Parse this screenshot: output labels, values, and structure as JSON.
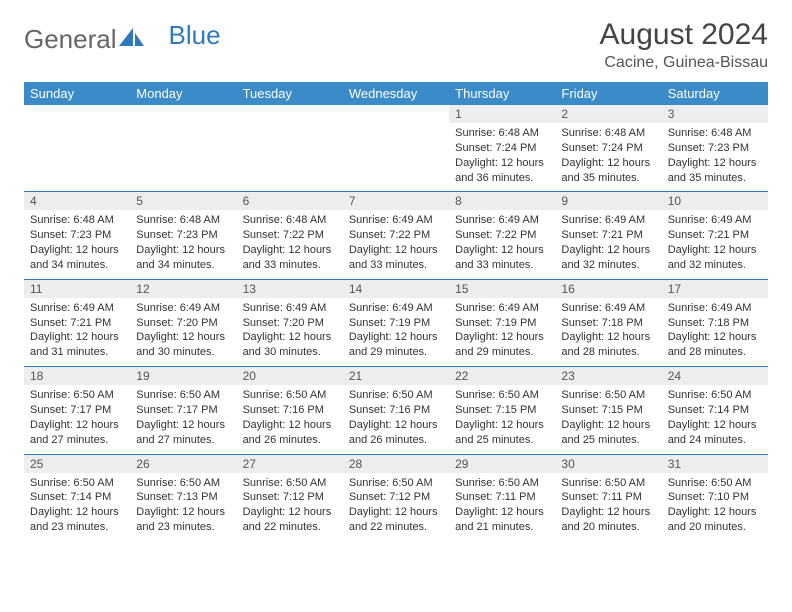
{
  "logo": {
    "general": "General",
    "blue": "Blue"
  },
  "title": "August 2024",
  "subtitle": "Cacine, Guinea-Bissau",
  "dow": [
    "Sunday",
    "Monday",
    "Tuesday",
    "Wednesday",
    "Thursday",
    "Friday",
    "Saturday"
  ],
  "colors": {
    "header_bg": "#3b8bc8",
    "accent": "#2f7abf",
    "daynum_bg": "#ededed",
    "text": "#333333"
  },
  "weeks": [
    [
      null,
      null,
      null,
      null,
      {
        "n": "1",
        "sr": "6:48 AM",
        "ss": "7:24 PM",
        "dl": "12 hours and 36 minutes."
      },
      {
        "n": "2",
        "sr": "6:48 AM",
        "ss": "7:24 PM",
        "dl": "12 hours and 35 minutes."
      },
      {
        "n": "3",
        "sr": "6:48 AM",
        "ss": "7:23 PM",
        "dl": "12 hours and 35 minutes."
      }
    ],
    [
      {
        "n": "4",
        "sr": "6:48 AM",
        "ss": "7:23 PM",
        "dl": "12 hours and 34 minutes."
      },
      {
        "n": "5",
        "sr": "6:48 AM",
        "ss": "7:23 PM",
        "dl": "12 hours and 34 minutes."
      },
      {
        "n": "6",
        "sr": "6:48 AM",
        "ss": "7:22 PM",
        "dl": "12 hours and 33 minutes."
      },
      {
        "n": "7",
        "sr": "6:49 AM",
        "ss": "7:22 PM",
        "dl": "12 hours and 33 minutes."
      },
      {
        "n": "8",
        "sr": "6:49 AM",
        "ss": "7:22 PM",
        "dl": "12 hours and 33 minutes."
      },
      {
        "n": "9",
        "sr": "6:49 AM",
        "ss": "7:21 PM",
        "dl": "12 hours and 32 minutes."
      },
      {
        "n": "10",
        "sr": "6:49 AM",
        "ss": "7:21 PM",
        "dl": "12 hours and 32 minutes."
      }
    ],
    [
      {
        "n": "11",
        "sr": "6:49 AM",
        "ss": "7:21 PM",
        "dl": "12 hours and 31 minutes."
      },
      {
        "n": "12",
        "sr": "6:49 AM",
        "ss": "7:20 PM",
        "dl": "12 hours and 30 minutes."
      },
      {
        "n": "13",
        "sr": "6:49 AM",
        "ss": "7:20 PM",
        "dl": "12 hours and 30 minutes."
      },
      {
        "n": "14",
        "sr": "6:49 AM",
        "ss": "7:19 PM",
        "dl": "12 hours and 29 minutes."
      },
      {
        "n": "15",
        "sr": "6:49 AM",
        "ss": "7:19 PM",
        "dl": "12 hours and 29 minutes."
      },
      {
        "n": "16",
        "sr": "6:49 AM",
        "ss": "7:18 PM",
        "dl": "12 hours and 28 minutes."
      },
      {
        "n": "17",
        "sr": "6:49 AM",
        "ss": "7:18 PM",
        "dl": "12 hours and 28 minutes."
      }
    ],
    [
      {
        "n": "18",
        "sr": "6:50 AM",
        "ss": "7:17 PM",
        "dl": "12 hours and 27 minutes."
      },
      {
        "n": "19",
        "sr": "6:50 AM",
        "ss": "7:17 PM",
        "dl": "12 hours and 27 minutes."
      },
      {
        "n": "20",
        "sr": "6:50 AM",
        "ss": "7:16 PM",
        "dl": "12 hours and 26 minutes."
      },
      {
        "n": "21",
        "sr": "6:50 AM",
        "ss": "7:16 PM",
        "dl": "12 hours and 26 minutes."
      },
      {
        "n": "22",
        "sr": "6:50 AM",
        "ss": "7:15 PM",
        "dl": "12 hours and 25 minutes."
      },
      {
        "n": "23",
        "sr": "6:50 AM",
        "ss": "7:15 PM",
        "dl": "12 hours and 25 minutes."
      },
      {
        "n": "24",
        "sr": "6:50 AM",
        "ss": "7:14 PM",
        "dl": "12 hours and 24 minutes."
      }
    ],
    [
      {
        "n": "25",
        "sr": "6:50 AM",
        "ss": "7:14 PM",
        "dl": "12 hours and 23 minutes."
      },
      {
        "n": "26",
        "sr": "6:50 AM",
        "ss": "7:13 PM",
        "dl": "12 hours and 23 minutes."
      },
      {
        "n": "27",
        "sr": "6:50 AM",
        "ss": "7:12 PM",
        "dl": "12 hours and 22 minutes."
      },
      {
        "n": "28",
        "sr": "6:50 AM",
        "ss": "7:12 PM",
        "dl": "12 hours and 22 minutes."
      },
      {
        "n": "29",
        "sr": "6:50 AM",
        "ss": "7:11 PM",
        "dl": "12 hours and 21 minutes."
      },
      {
        "n": "30",
        "sr": "6:50 AM",
        "ss": "7:11 PM",
        "dl": "12 hours and 20 minutes."
      },
      {
        "n": "31",
        "sr": "6:50 AM",
        "ss": "7:10 PM",
        "dl": "12 hours and 20 minutes."
      }
    ]
  ],
  "labels": {
    "sunrise": "Sunrise:",
    "sunset": "Sunset:",
    "daylight": "Daylight:"
  }
}
